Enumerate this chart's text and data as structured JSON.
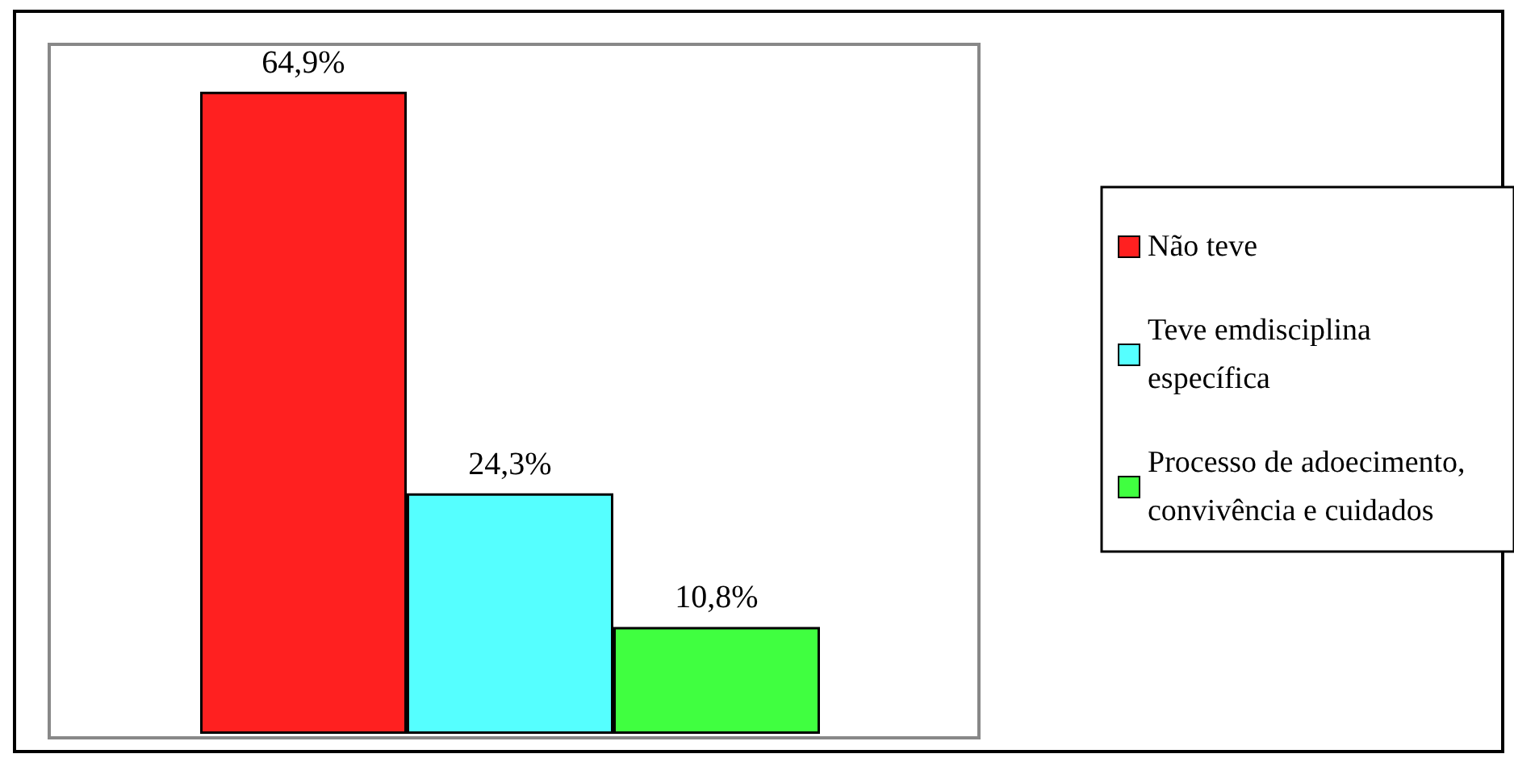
{
  "chart_data": {
    "type": "bar",
    "categories": [
      null
    ],
    "series": [
      {
        "name": "Não teve",
        "color": "#ff2020",
        "values": [
          64.9
        ],
        "value_labels": [
          "64,9%"
        ]
      },
      {
        "name": "Teve emdisciplina específica",
        "color": "#55ffff",
        "values": [
          24.3
        ],
        "value_labels": [
          "24,3%"
        ]
      },
      {
        "name": "Processo de adoecimento, convivência e cuidados",
        "color": "#40ff40",
        "values": [
          10.8
        ],
        "value_labels": [
          "10,8%"
        ]
      }
    ],
    "legend": "right"
  }
}
